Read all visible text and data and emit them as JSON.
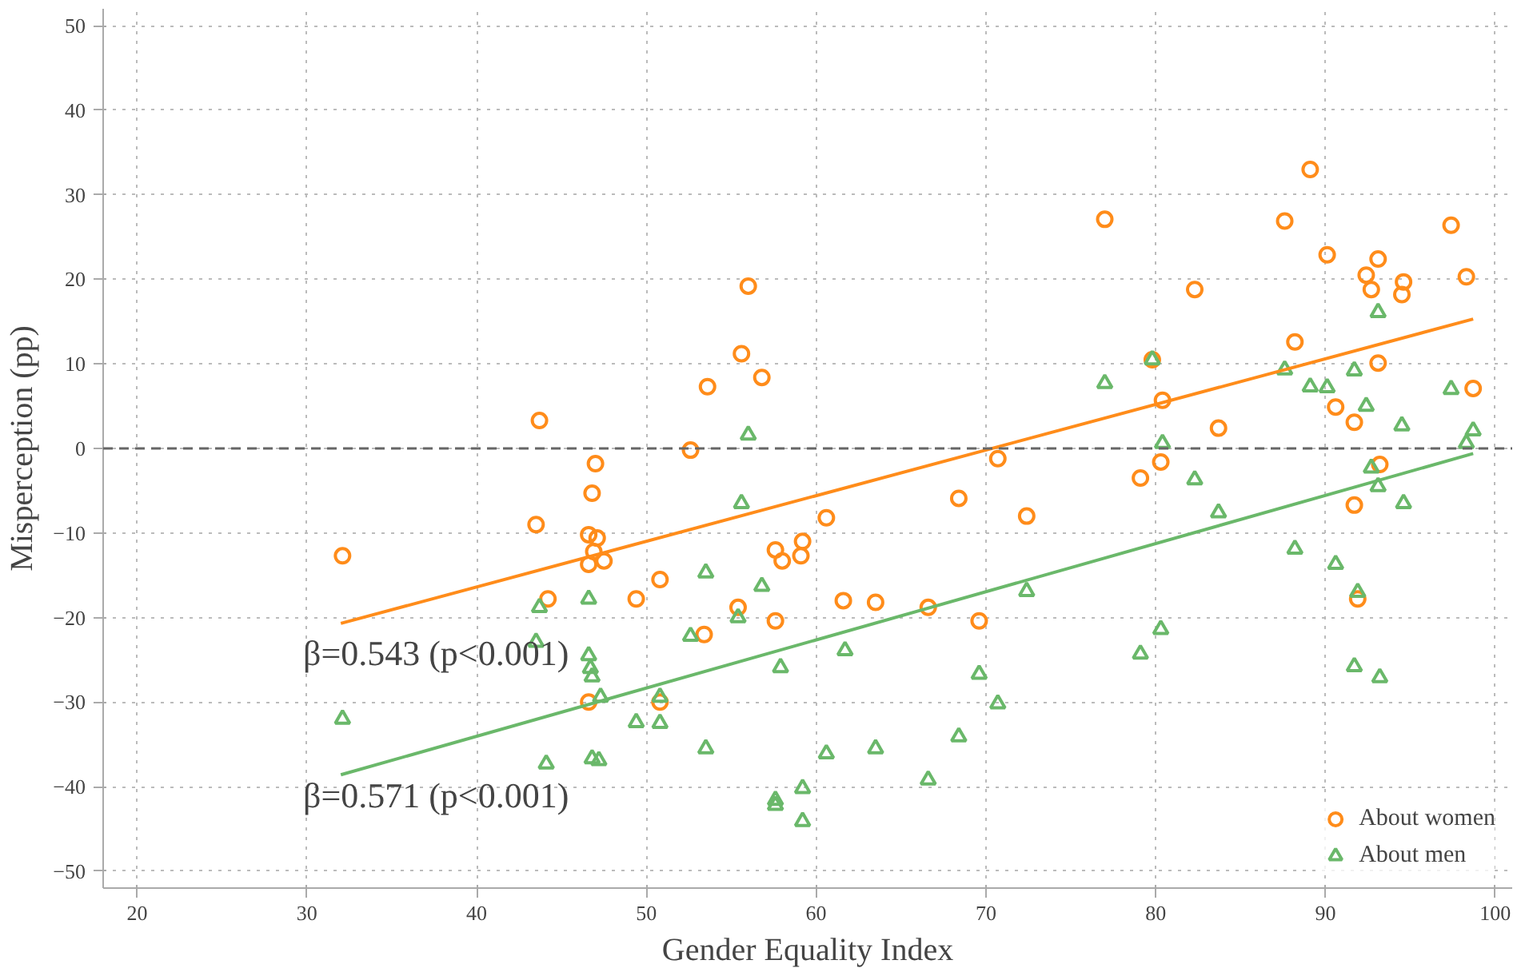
{
  "chart_data": {
    "type": "scatter",
    "xlabel": "Gender Equality Index",
    "ylabel": "Misperception (pp)",
    "xlim": [
      18,
      101
    ],
    "ylim": [
      -52,
      52
    ],
    "xticks": [
      20,
      30,
      40,
      50,
      60,
      70,
      80,
      90,
      100
    ],
    "yticks": [
      -50,
      -40,
      -30,
      -20,
      -10,
      0,
      10,
      20,
      30,
      40,
      50
    ],
    "grid": true,
    "legend": "bottom right",
    "ref_lines": [
      {
        "axis": "y",
        "value": 0,
        "color": "#666666",
        "line_style": "dashed"
      }
    ],
    "annotations": [
      "β=0.543 (p<0.001)",
      "β=0.571 (p<0.001)"
    ],
    "series": [
      {
        "name": "About women",
        "color": "#ff8c1a",
        "marker": "circle",
        "x": [
          32.1,
          43.7,
          43.5,
          44.2,
          47.0,
          46.8,
          46.6,
          47.1,
          46.9,
          46.6,
          47.5,
          46.6,
          49.4,
          50.8,
          50.8,
          52.6,
          53.6,
          53.4,
          55.4,
          55.6,
          56.0,
          56.8,
          57.6,
          58.0,
          57.6,
          59.2,
          59.1,
          60.6,
          61.6,
          63.5,
          66.6,
          68.4,
          69.6,
          70.7,
          72.4,
          77.0,
          79.8,
          82.3,
          80.4,
          83.7,
          80.3,
          79.1,
          87.6,
          89.1,
          90.1,
          88.2,
          90.6,
          91.7,
          93.1,
          92.4,
          92.7,
          94.6,
          94.5,
          97.4,
          98.3,
          93.1,
          98.7,
          93.2,
          91.7,
          91.9
        ],
        "values": [
          -12.7,
          3.3,
          -9.0,
          -17.8,
          -1.8,
          -5.3,
          -10.2,
          -10.6,
          -12.2,
          -13.7,
          -13.3,
          -30.0,
          -17.8,
          -30.0,
          -15.5,
          -0.2,
          7.3,
          -22.0,
          -18.8,
          11.2,
          19.2,
          8.4,
          -12.0,
          -13.3,
          -20.4,
          -11.0,
          -12.7,
          -8.2,
          -18.0,
          -18.2,
          -18.8,
          -5.9,
          -20.4,
          -1.2,
          -8.0,
          27.1,
          10.5,
          18.8,
          5.7,
          2.4,
          -1.6,
          -3.5,
          26.9,
          33.0,
          22.9,
          12.6,
          4.9,
          3.1,
          22.4,
          20.5,
          18.8,
          19.7,
          18.2,
          26.4,
          20.3,
          10.1,
          7.1,
          -1.9,
          -6.7,
          -17.8
        ]
      },
      {
        "name": "About men",
        "color": "#6ab86a",
        "marker": "triangle",
        "x": [
          32.1,
          43.7,
          43.5,
          44.1,
          46.6,
          46.6,
          46.7,
          46.8,
          47.3,
          46.8,
          47.2,
          49.4,
          50.8,
          50.8,
          52.6,
          53.5,
          53.5,
          55.6,
          55.4,
          56.0,
          56.8,
          57.6,
          57.6,
          57.9,
          59.2,
          59.2,
          60.6,
          61.7,
          63.5,
          66.6,
          68.4,
          69.6,
          70.7,
          72.4,
          77.0,
          79.8,
          80.4,
          82.3,
          83.7,
          79.1,
          80.3,
          87.6,
          89.1,
          90.1,
          91.7,
          92.4,
          93.1,
          94.5,
          97.4,
          98.7,
          98.3,
          92.7,
          93.1,
          94.6,
          88.2,
          90.6,
          91.9,
          91.7,
          93.2
        ],
        "values": [
          -32.0,
          -18.8,
          -22.9,
          -37.3,
          -17.8,
          -24.5,
          -26.0,
          -27.0,
          -29.4,
          -36.7,
          -36.9,
          -32.4,
          -29.4,
          -32.5,
          -22.2,
          -14.7,
          -35.5,
          -6.5,
          -20.0,
          1.6,
          -16.3,
          -41.6,
          -42.2,
          -25.9,
          -40.2,
          -44.1,
          -36.1,
          -23.9,
          -35.5,
          -39.2,
          -34.1,
          -26.7,
          -30.2,
          -16.9,
          7.7,
          10.5,
          0.6,
          -3.7,
          -7.6,
          -24.3,
          -21.4,
          9.3,
          7.3,
          7.2,
          9.2,
          5.0,
          16.1,
          2.7,
          7.0,
          2.1,
          0.6,
          -2.3,
          -4.5,
          -6.5,
          -11.9,
          -13.7,
          -17.0,
          -25.8,
          -27.1
        ]
      },
      {
        "type": "line",
        "color": "#ff8c1a",
        "x": [
          32,
          98.7
        ],
        "values": [
          -20.7,
          15.3
        ]
      },
      {
        "type": "line",
        "color": "#6ab86a",
        "x": [
          32,
          98.7
        ],
        "values": [
          -38.6,
          -0.6
        ]
      }
    ]
  }
}
